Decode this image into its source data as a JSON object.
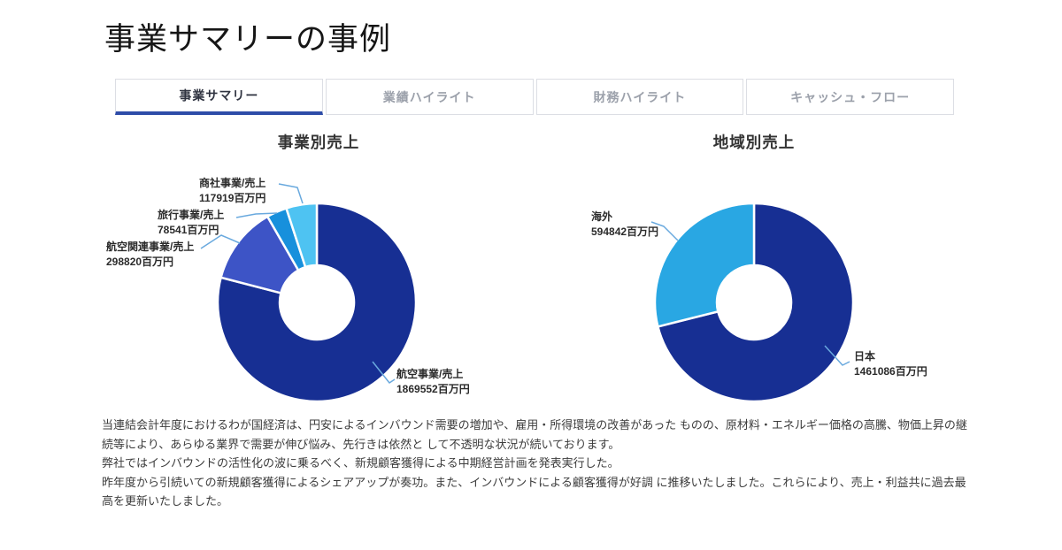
{
  "page": {
    "title": "事業サマリーの事例"
  },
  "tabs": [
    {
      "label": "事業サマリー",
      "active": true
    },
    {
      "label": "業績ハイライト",
      "active": false
    },
    {
      "label": "財務ハイライト",
      "active": false
    },
    {
      "label": "キャッシュ・フロー",
      "active": false
    }
  ],
  "charts": {
    "business": {
      "title": "事業別売上",
      "slices": [
        {
          "name": "航空事業/売上",
          "value": 1869552,
          "value_label": "1869552百万円",
          "color": "#172f93"
        },
        {
          "name": "航空関連事業/売上",
          "value": 298820,
          "value_label": "298820百万円",
          "color": "#3d54c6"
        },
        {
          "name": "旅行事業/売上",
          "value": 78541,
          "value_label": "78541百万円",
          "color": "#1790dc"
        },
        {
          "name": "商社事業/売上",
          "value": 117919,
          "value_label": "117919百万円",
          "color": "#4ec3f2"
        }
      ]
    },
    "region": {
      "title": "地域別売上",
      "slices": [
        {
          "name": "日本",
          "value": 1461086,
          "value_label": "1461086百万円",
          "color": "#172f93"
        },
        {
          "name": "海外",
          "value": 594842,
          "value_label": "594842百万円",
          "color": "#29a7e3"
        }
      ]
    }
  },
  "commentary": {
    "paragraphs": [
      "当連結会計年度におけるわが国経済は、円安によるインバウンド需要の増加や、雇用・所得環境の改善があった ものの、原材料・エネルギー価格の高騰、物価上昇の継続等により、あらゆる業界で需要が伸び悩み、先行きは依然と して不透明な状況が続いております。",
      "弊社ではインバウンドの活性化の波に乗るべく、新規顧客獲得による中期経営計画を発表実行した。",
      "昨年度から引続いての新規顧客獲得によるシェアアップが奏功。また、インバウンドによる顧客獲得が好調 に推移いたしました。これらにより、売上・利益共に過去最高を更新いたしました。"
    ]
  },
  "colors": {
    "accent_underline": "#2e4ca8",
    "leader_line": "#69a9de",
    "navy": "#172f93"
  },
  "chart_data": [
    {
      "type": "pie",
      "subtype": "donut",
      "title": "事業別売上",
      "categories": [
        "航空事業/売上",
        "航空関連事業/売上",
        "旅行事業/売上",
        "商社事業/売上"
      ],
      "values": [
        1869552,
        298820,
        78541,
        117919
      ],
      "unit": "百万円",
      "colors": [
        "#172f93",
        "#3d54c6",
        "#1790dc",
        "#4ec3f2"
      ],
      "legend": "none",
      "labels": "outside leader lines",
      "start_angle_deg": 0,
      "direction": "clockwise"
    },
    {
      "type": "pie",
      "subtype": "donut",
      "title": "地域別売上",
      "categories": [
        "日本",
        "海外"
      ],
      "values": [
        1461086,
        594842
      ],
      "unit": "百万円",
      "colors": [
        "#172f93",
        "#29a7e3"
      ],
      "legend": "none",
      "labels": "outside leader lines",
      "start_angle_deg": 0,
      "direction": "clockwise"
    }
  ]
}
